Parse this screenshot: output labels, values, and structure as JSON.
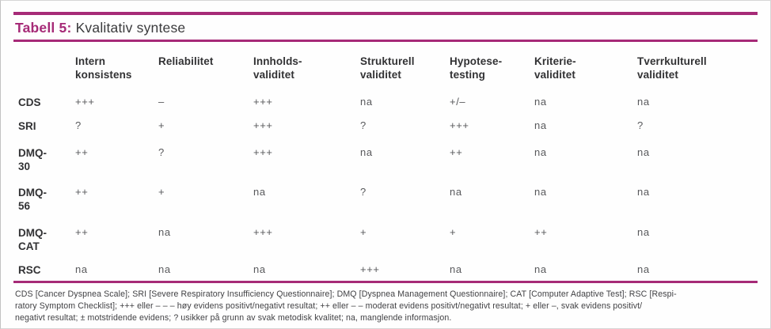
{
  "title": {
    "label": "Tabell 5:",
    "text": "Kvalitativ syntese"
  },
  "colors": {
    "accent_magenta": "#a62a77",
    "header_text": "#323234",
    "value_text": "#58595c"
  },
  "table": {
    "columns": [
      "Intern\nkonsistens",
      "Reliabilitet",
      "Innholds-\nvaliditet",
      "Strukturell\nvaliditet",
      "Hypotese-\ntesting",
      "Kriterie-\nvaliditet",
      "Tverrkulturell\nvaliditet"
    ],
    "rows": [
      {
        "label": "CDS",
        "cells": [
          "+++",
          "–",
          "+++",
          "na",
          "+/–",
          "na",
          "na"
        ]
      },
      {
        "label": "SRI",
        "cells": [
          "?",
          "+",
          "+++",
          "?",
          "+++",
          "na",
          "?"
        ]
      },
      {
        "label": "DMQ-\n30",
        "cells": [
          "++",
          "?",
          "+++",
          "na",
          "++",
          "na",
          "na"
        ]
      },
      {
        "label": "DMQ-\n56",
        "cells": [
          "++",
          "+",
          "na",
          "?",
          "na",
          "na",
          "na"
        ]
      },
      {
        "label": "DMQ-\nCAT",
        "cells": [
          "++",
          "na",
          "+++",
          "+",
          "+",
          "++",
          "na"
        ]
      },
      {
        "label": "RSC",
        "cells": [
          "na",
          "na",
          "na",
          "+++",
          "na",
          "na",
          "na"
        ]
      }
    ]
  },
  "footnote": {
    "lines": [
      "CDS [Cancer Dyspnea Scale]; SRI [Severe Respiratory Insufficiency Questionnaire]; DMQ [Dyspnea Management Questionnaire]; CAT [Computer Adaptive Test]; RSC [Respi-",
      "ratory Symptom Checklist]; +++ eller – – – høy evidens positivt/negativt resultat; ++ eller – – moderat evidens positivt/negativt resultat; + eller –, svak evidens positivt/",
      "negativt resultat; ± motstridende evidens; ? usikker på grunn av svak metodisk kvalitet; na, manglende informasjon."
    ]
  }
}
